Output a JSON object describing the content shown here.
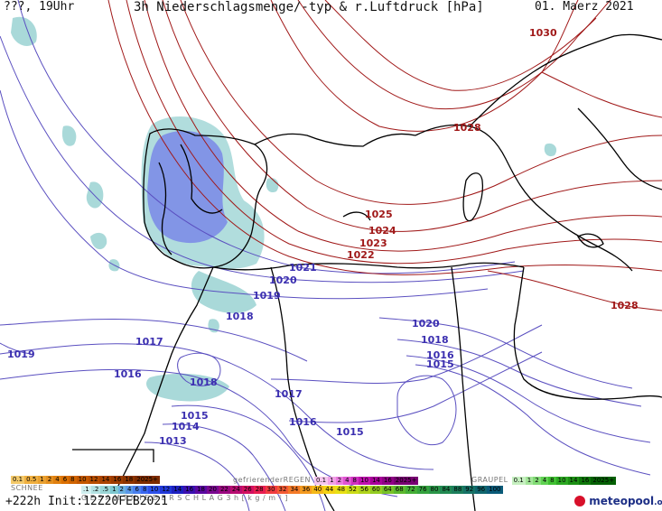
{
  "header": {
    "left": "???, 19Uhr",
    "title": "3h Niederschlagsmenge/-typ & r.Luftdruck [hPa]",
    "date": "01. Maerz 2021"
  },
  "isobars_low": [
    "1021",
    "1020",
    "1019",
    "1018",
    "1017",
    "1016",
    "1018",
    "1015",
    "1014",
    "1013",
    "1017",
    "1016",
    "1015",
    "1020",
    "1018",
    "1016",
    "1015",
    "1019"
  ],
  "isobars_high": [
    "1030",
    "1028",
    "1025",
    "1024",
    "1023",
    "1022",
    "1028"
  ],
  "legend": {
    "snow_title": "SCHNEE",
    "snow_top": [
      "0.1",
      "0.5",
      "1",
      "2",
      "4",
      "6",
      "8",
      "10",
      "12",
      "14",
      "16",
      "18",
      "2025+"
    ],
    "freezing_title": "gefrierenderREGEN",
    "freezing": [
      "0.1",
      "1",
      "2",
      "4",
      "8",
      "10",
      "14",
      "16",
      "2025+"
    ],
    "graupel_title": "GRAUPEL",
    "graupel": [
      "0.1",
      "1",
      "2",
      "4",
      "8",
      "10",
      "14",
      "16",
      "2025+"
    ],
    "total_title": "G E S A M T N I E D E R S C H L A G   3 h   [ k g / m ² ]",
    "total": [
      ".1",
      ".2",
      ".5",
      "1",
      "2",
      "4",
      "6",
      "8",
      "10",
      "12",
      "14",
      "16",
      "18",
      "20",
      "22",
      "24",
      "26",
      "28",
      "30",
      "32",
      "34",
      "36",
      "40",
      "44",
      "48",
      "52",
      "56",
      "60",
      "64",
      "68",
      "72",
      "76",
      "80",
      "84",
      "88",
      "92",
      "96",
      "100"
    ]
  },
  "footer": {
    "run": "+222h  Init:12Z20FEB2021",
    "brand": "meteopool",
    "brand_tld": ".org"
  },
  "colors": {
    "low_isobar": "#5a4fc0",
    "high_isobar": "#a01818",
    "precip_light": "#a9d9d9",
    "precip_heavy": "#7a88e8",
    "coast": "#000000"
  }
}
